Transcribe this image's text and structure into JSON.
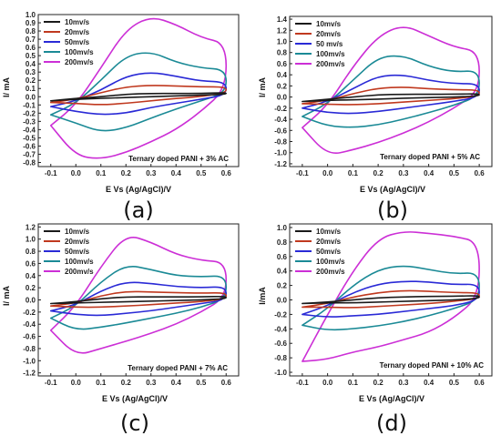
{
  "colors": {
    "10mv/s": "#1a1a1a",
    "20mv/s": "#c0391f",
    "50mv/s": "#2a2ad6",
    "100mv/s": "#1b8a96",
    "200mv/s": "#cc2fd6"
  },
  "chart_data": [
    {
      "type": "line",
      "panel_label": "(a)",
      "annotation": "Ternary doped PANI + 3% AC",
      "xlabel": "E Vs (Ag/AgCl)/V",
      "ylabel": "I/ mA",
      "xlim": [
        -0.15,
        0.65
      ],
      "ylim": [
        -0.85,
        1.0
      ],
      "xticks": [
        "-0.1",
        "0.0",
        "0.1",
        "0.2",
        "0.3",
        "0.4",
        "0.5",
        "0.6"
      ],
      "yticks": [
        "-0.8",
        "-0.7",
        "-0.6",
        "-0.5",
        "-0.4",
        "-0.3",
        "-0.2",
        "-0.1",
        "0.0",
        "0.1",
        "0.2",
        "0.3",
        "0.4",
        "0.5",
        "0.6",
        "0.7",
        "0.8",
        "0.9",
        "1.0"
      ],
      "legend": [
        "10mv/s",
        "20mv/s",
        "50mv/s",
        "100mv/s",
        "200mv/s"
      ],
      "legend_position": "top-left",
      "series": [
        {
          "name": "10mv/s",
          "x": [
            -0.1,
            0.0,
            0.1,
            0.2,
            0.3,
            0.4,
            0.5,
            0.6,
            0.6,
            0.5,
            0.4,
            0.3,
            0.2,
            0.1,
            0.0,
            -0.1
          ],
          "y": [
            -0.05,
            -0.02,
            0.0,
            0.03,
            0.04,
            0.04,
            0.04,
            0.05,
            0.03,
            0.02,
            0.01,
            0.0,
            -0.01,
            -0.02,
            -0.03,
            -0.05
          ]
        },
        {
          "name": "20mv/s",
          "x": [
            -0.1,
            0.0,
            0.1,
            0.2,
            0.3,
            0.4,
            0.5,
            0.6,
            0.6,
            0.5,
            0.4,
            0.3,
            0.2,
            0.1,
            0.0,
            -0.1
          ],
          "y": [
            -0.07,
            -0.03,
            0.05,
            0.12,
            0.14,
            0.13,
            0.12,
            0.12,
            0.05,
            0.0,
            -0.02,
            -0.05,
            -0.08,
            -0.1,
            -0.08,
            -0.07
          ]
        },
        {
          "name": "50mv/s",
          "x": [
            -0.1,
            0.0,
            0.1,
            0.2,
            0.3,
            0.4,
            0.5,
            0.6,
            0.6,
            0.5,
            0.4,
            0.3,
            0.2,
            0.1,
            0.0,
            -0.1
          ],
          "y": [
            -0.12,
            -0.05,
            0.08,
            0.25,
            0.3,
            0.25,
            0.19,
            0.18,
            0.02,
            -0.03,
            -0.08,
            -0.13,
            -0.2,
            -0.22,
            -0.18,
            -0.12
          ]
        },
        {
          "name": "100mv/s",
          "x": [
            -0.1,
            0.0,
            0.1,
            0.2,
            0.3,
            0.4,
            0.5,
            0.6,
            0.6,
            0.5,
            0.4,
            0.3,
            0.2,
            0.1,
            0.0,
            -0.1
          ],
          "y": [
            -0.22,
            -0.08,
            0.2,
            0.5,
            0.55,
            0.42,
            0.35,
            0.33,
            0.05,
            -0.05,
            -0.15,
            -0.26,
            -0.38,
            -0.43,
            -0.32,
            -0.22
          ]
        },
        {
          "name": "200mv/s",
          "x": [
            -0.1,
            0.0,
            0.1,
            0.2,
            0.3,
            0.4,
            0.5,
            0.6,
            0.6,
            0.5,
            0.4,
            0.3,
            0.2,
            0.1,
            0.0,
            -0.1
          ],
          "y": [
            -0.35,
            -0.1,
            0.35,
            0.82,
            0.98,
            0.88,
            0.72,
            0.65,
            0.1,
            -0.18,
            -0.4,
            -0.55,
            -0.68,
            -0.76,
            -0.72,
            -0.35
          ]
        }
      ]
    },
    {
      "type": "line",
      "panel_label": "(b)",
      "annotation": "Ternary doped PANI + 5% AC",
      "xlabel": "E Vs (Ag/AgCl)/V",
      "ylabel": "I/ mA",
      "xlim": [
        -0.15,
        0.65
      ],
      "ylim": [
        -1.25,
        1.45
      ],
      "xticks": [
        "-0.1",
        "0.0",
        "0.1",
        "0.2",
        "0.3",
        "0.4",
        "0.5",
        "0.6"
      ],
      "yticks": [
        "-1.2",
        "-1.0",
        "-0.8",
        "-0.6",
        "-0.4",
        "-0.2",
        "0.0",
        "0.2",
        "0.4",
        "0.6",
        "0.8",
        "1.0",
        "1.2",
        "1.4"
      ],
      "legend": [
        "10mv/s",
        "20mv/s",
        "50 mv/s",
        "100mv/s",
        "200mv/s"
      ],
      "legend_position": "top-left",
      "series": [
        {
          "name": "10mv/s",
          "x": [
            -0.1,
            0.0,
            0.1,
            0.2,
            0.3,
            0.4,
            0.5,
            0.6,
            0.6,
            0.5,
            0.4,
            0.3,
            0.2,
            0.1,
            0.0,
            -0.1
          ],
          "y": [
            -0.08,
            -0.04,
            0.0,
            0.04,
            0.05,
            0.05,
            0.05,
            0.06,
            0.02,
            0.0,
            -0.01,
            -0.02,
            -0.04,
            -0.05,
            -0.06,
            -0.08
          ]
        },
        {
          "name": "20mv/s",
          "x": [
            -0.1,
            0.0,
            0.1,
            0.2,
            0.3,
            0.4,
            0.5,
            0.6,
            0.6,
            0.5,
            0.4,
            0.3,
            0.2,
            0.1,
            0.0,
            -0.1
          ],
          "y": [
            -0.12,
            -0.06,
            0.06,
            0.16,
            0.18,
            0.15,
            0.13,
            0.13,
            0.02,
            -0.03,
            -0.06,
            -0.09,
            -0.12,
            -0.14,
            -0.13,
            -0.12
          ]
        },
        {
          "name": "50 mv/s",
          "x": [
            -0.1,
            0.0,
            0.1,
            0.2,
            0.3,
            0.4,
            0.5,
            0.6,
            0.6,
            0.5,
            0.4,
            0.3,
            0.2,
            0.1,
            0.0,
            -0.1
          ],
          "y": [
            -0.2,
            -0.08,
            0.15,
            0.38,
            0.4,
            0.3,
            0.24,
            0.24,
            0.0,
            -0.08,
            -0.14,
            -0.2,
            -0.26,
            -0.3,
            -0.28,
            -0.2
          ]
        },
        {
          "name": "100mv/s",
          "x": [
            -0.1,
            0.0,
            0.1,
            0.2,
            0.3,
            0.4,
            0.5,
            0.6,
            0.6,
            0.5,
            0.4,
            0.3,
            0.2,
            0.1,
            0.0,
            -0.1
          ],
          "y": [
            -0.35,
            -0.12,
            0.3,
            0.72,
            0.75,
            0.55,
            0.45,
            0.48,
            0.02,
            -0.15,
            -0.28,
            -0.4,
            -0.5,
            -0.55,
            -0.52,
            -0.35
          ]
        },
        {
          "name": "200mv/s",
          "x": [
            -0.1,
            0.0,
            0.1,
            0.2,
            0.3,
            0.4,
            0.5,
            0.6,
            0.6,
            0.5,
            0.4,
            0.3,
            0.2,
            0.1,
            0.0,
            -0.1
          ],
          "y": [
            -0.55,
            -0.15,
            0.55,
            1.1,
            1.3,
            1.1,
            0.9,
            0.82,
            0.1,
            -0.2,
            -0.45,
            -0.65,
            -0.82,
            -0.95,
            -1.05,
            -0.55
          ]
        }
      ]
    },
    {
      "type": "line",
      "panel_label": "(c)",
      "annotation": "Ternary doped PANI + 7% AC",
      "xlabel": "E Vs (Ag/AgCl)/V",
      "ylabel": "I/ mA",
      "xlim": [
        -0.15,
        0.65
      ],
      "ylim": [
        -1.25,
        1.25
      ],
      "xticks": [
        "-0.1",
        "0.0",
        "0.1",
        "0.2",
        "0.3",
        "0.4",
        "0.5",
        "0.6"
      ],
      "yticks": [
        "-1.2",
        "-1.0",
        "-0.8",
        "-0.6",
        "-0.4",
        "-0.2",
        "0.0",
        "0.2",
        "0.4",
        "0.6",
        "0.8",
        "1.0",
        "1.2"
      ],
      "legend": [
        "10mv/s",
        "20mv/s",
        "50mv/s",
        "100mv/s",
        "200mv/s"
      ],
      "legend_position": "top-left",
      "series": [
        {
          "name": "10mv/s",
          "x": [
            -0.1,
            0.0,
            0.1,
            0.2,
            0.3,
            0.4,
            0.5,
            0.6,
            0.6,
            0.5,
            0.4,
            0.3,
            0.2,
            0.1,
            0.0,
            -0.1
          ],
          "y": [
            -0.06,
            -0.03,
            0.02,
            0.05,
            0.05,
            0.05,
            0.05,
            0.06,
            0.02,
            0.0,
            -0.01,
            -0.02,
            -0.03,
            -0.04,
            -0.05,
            -0.06
          ]
        },
        {
          "name": "20mv/s",
          "x": [
            -0.1,
            0.0,
            0.1,
            0.2,
            0.3,
            0.4,
            0.5,
            0.6,
            0.6,
            0.5,
            0.4,
            0.3,
            0.2,
            0.1,
            0.0,
            -0.1
          ],
          "y": [
            -0.1,
            -0.05,
            0.07,
            0.14,
            0.13,
            0.12,
            0.11,
            0.12,
            0.02,
            -0.03,
            -0.05,
            -0.08,
            -0.1,
            -0.12,
            -0.12,
            -0.1
          ]
        },
        {
          "name": "50mv/s",
          "x": [
            -0.1,
            0.0,
            0.1,
            0.2,
            0.3,
            0.4,
            0.5,
            0.6,
            0.6,
            0.5,
            0.4,
            0.3,
            0.2,
            0.1,
            0.0,
            -0.1
          ],
          "y": [
            -0.18,
            -0.08,
            0.15,
            0.3,
            0.27,
            0.22,
            0.2,
            0.22,
            0.0,
            -0.06,
            -0.12,
            -0.18,
            -0.22,
            -0.26,
            -0.24,
            -0.18
          ]
        },
        {
          "name": "100mv/s",
          "x": [
            -0.1,
            0.0,
            0.1,
            0.2,
            0.3,
            0.4,
            0.5,
            0.6,
            0.6,
            0.5,
            0.4,
            0.3,
            0.2,
            0.1,
            0.0,
            -0.1
          ],
          "y": [
            -0.3,
            -0.1,
            0.3,
            0.58,
            0.5,
            0.4,
            0.38,
            0.4,
            0.02,
            -0.12,
            -0.22,
            -0.3,
            -0.38,
            -0.45,
            -0.5,
            -0.3
          ]
        },
        {
          "name": "200mv/s",
          "x": [
            -0.1,
            0.0,
            0.1,
            0.2,
            0.3,
            0.4,
            0.5,
            0.6,
            0.6,
            0.5,
            0.4,
            0.3,
            0.2,
            0.1,
            0.0,
            -0.1
          ],
          "y": [
            -0.5,
            -0.1,
            0.55,
            1.08,
            0.95,
            0.75,
            0.65,
            0.62,
            0.05,
            -0.2,
            -0.4,
            -0.55,
            -0.68,
            -0.8,
            -0.92,
            -0.5
          ]
        }
      ]
    },
    {
      "type": "line",
      "panel_label": "(d)",
      "annotation": "Ternary doped PANI + 10% AC",
      "xlabel": "E Vs (Ag/AgCl)/V",
      "ylabel": "I/mA",
      "xlim": [
        -0.15,
        0.65
      ],
      "ylim": [
        -1.05,
        1.05
      ],
      "xticks": [
        "-0.1",
        "0.0",
        "0.1",
        "0.2",
        "0.3",
        "0.4",
        "0.5",
        "0.6"
      ],
      "yticks": [
        "-1.0",
        "-0.8",
        "-0.6",
        "-0.4",
        "-0.2",
        "0.0",
        "0.2",
        "0.4",
        "0.6",
        "0.8",
        "1.0"
      ],
      "legend": [
        "10mv/s",
        "20mv/s",
        "50mv/s",
        "100mv/s",
        "200mv/s"
      ],
      "legend_position": "top-left",
      "series": [
        {
          "name": "10mv/s",
          "x": [
            -0.1,
            0.0,
            0.1,
            0.2,
            0.3,
            0.4,
            0.5,
            0.6,
            0.6,
            0.5,
            0.4,
            0.3,
            0.2,
            0.1,
            0.0,
            -0.1
          ],
          "y": [
            -0.05,
            -0.03,
            0.0,
            0.03,
            0.04,
            0.05,
            0.05,
            0.06,
            0.02,
            0.0,
            -0.01,
            -0.02,
            -0.03,
            -0.04,
            -0.04,
            -0.05
          ]
        },
        {
          "name": "20mv/s",
          "x": [
            -0.1,
            0.0,
            0.1,
            0.2,
            0.3,
            0.4,
            0.5,
            0.6,
            0.6,
            0.5,
            0.4,
            0.3,
            0.2,
            0.1,
            0.0,
            -0.1
          ],
          "y": [
            -0.1,
            -0.05,
            0.04,
            0.1,
            0.13,
            0.12,
            0.1,
            0.1,
            0.02,
            -0.02,
            -0.05,
            -0.07,
            -0.09,
            -0.11,
            -0.1,
            -0.1
          ]
        },
        {
          "name": "50mv/s",
          "x": [
            -0.1,
            0.0,
            0.1,
            0.2,
            0.3,
            0.4,
            0.5,
            0.6,
            0.6,
            0.5,
            0.4,
            0.3,
            0.2,
            0.1,
            0.0,
            -0.1
          ],
          "y": [
            -0.2,
            -0.08,
            0.1,
            0.22,
            0.26,
            0.25,
            0.21,
            0.22,
            0.0,
            -0.08,
            -0.12,
            -0.16,
            -0.2,
            -0.22,
            -0.24,
            -0.2
          ]
        },
        {
          "name": "100mv/s",
          "x": [
            -0.1,
            0.0,
            0.1,
            0.2,
            0.3,
            0.4,
            0.5,
            0.6,
            0.6,
            0.5,
            0.4,
            0.3,
            0.2,
            0.1,
            0.0,
            -0.1
          ],
          "y": [
            -0.35,
            -0.12,
            0.2,
            0.42,
            0.48,
            0.42,
            0.36,
            0.38,
            0.0,
            -0.12,
            -0.22,
            -0.3,
            -0.36,
            -0.4,
            -0.42,
            -0.35
          ]
        },
        {
          "name": "200mv/s",
          "x": [
            -0.1,
            0.0,
            0.1,
            0.2,
            0.3,
            0.4,
            0.5,
            0.6,
            0.6,
            0.5,
            0.4,
            0.3,
            0.2,
            0.1,
            0.0,
            -0.1
          ],
          "y": [
            -0.85,
            -0.2,
            0.4,
            0.85,
            0.95,
            0.92,
            0.88,
            0.8,
            0.05,
            -0.25,
            -0.45,
            -0.55,
            -0.65,
            -0.72,
            -0.82,
            -0.85
          ]
        }
      ]
    }
  ]
}
